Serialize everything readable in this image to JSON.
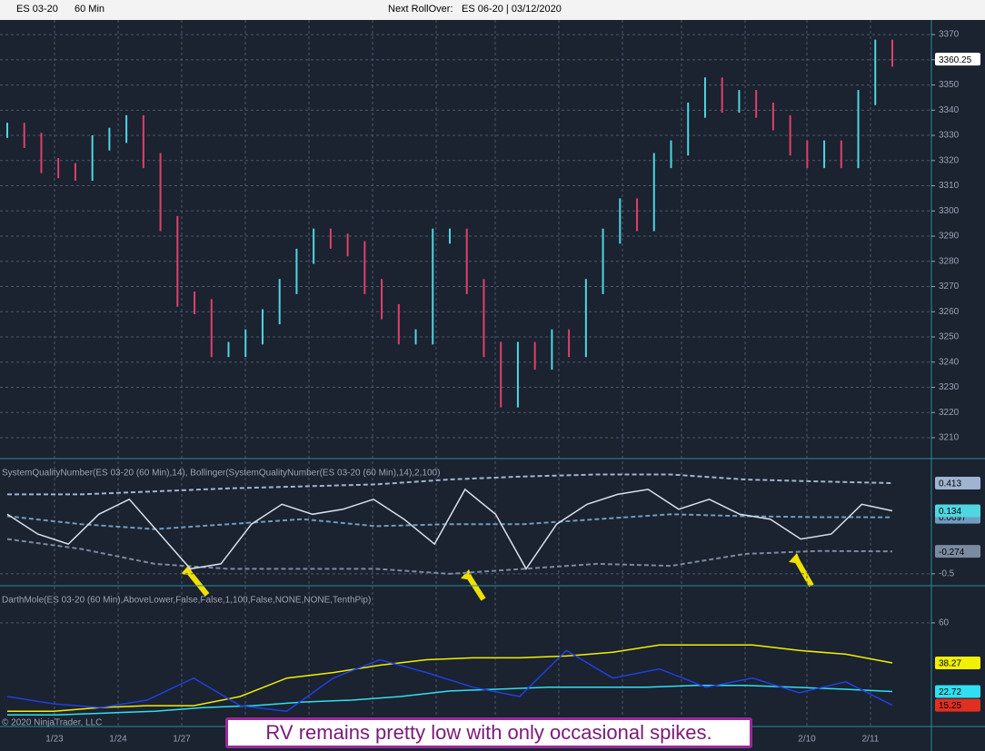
{
  "toolbar": {
    "symbol": "ES 03-20",
    "interval": "60 Min",
    "rollover_label": "Next RollOver:",
    "rollover_value": "ES 06-20 | 03/12/2020"
  },
  "chart_data": [
    {
      "type": "price-bars",
      "series": [
        {
          "name": "ES 03-20",
          "up_color": "#4fd6e0",
          "down_color": "#e0406a",
          "values": [
            3332,
            3328,
            3318,
            3316,
            3315,
            3327,
            3330,
            3335,
            3320,
            3295,
            3265,
            3262,
            3245,
            3245,
            3250,
            3258,
            3270,
            3282,
            3290,
            3288,
            3285,
            3270,
            3260,
            3250,
            3250,
            3290,
            3290,
            3270,
            3245,
            3225,
            3245,
            3240,
            3250,
            3245,
            3270,
            3290,
            3302,
            3295,
            3320,
            3325,
            3340,
            3350,
            3342,
            3345,
            3340,
            3335,
            3325,
            3320,
            3325,
            3320,
            3345,
            3365,
            3360.25
          ]
        }
      ],
      "ylim": [
        3201.7,
        3375.8
      ],
      "yticks": [
        3210,
        3220,
        3230,
        3240,
        3250,
        3260,
        3270,
        3280,
        3290,
        3300,
        3310,
        3320,
        3330,
        3340,
        3350,
        3360,
        3370
      ]
    },
    {
      "type": "line",
      "title": "SystemQualityNumber(ES 03-20 (60 Min),14), Bollinger(SystemQualityNumber(ES 03-20 (60 Min),14),2,100)",
      "series": [
        {
          "name": "Upper",
          "color": "#9fb4d0",
          "dashed": true,
          "values": [
            0.3,
            0.3,
            0.33,
            0.36,
            0.38,
            0.4,
            0.45,
            0.48,
            0.5,
            0.5,
            0.45,
            0.43,
            0.413
          ]
        },
        {
          "name": "Middle",
          "color": "#6f9cc0",
          "dashed": true,
          "values": [
            0.08,
            0.0,
            -0.05,
            0.0,
            0.05,
            -0.02,
            0.0,
            0.0,
            0.05,
            0.1,
            0.08,
            0.07,
            0.0697
          ]
        },
        {
          "name": "Lower",
          "color": "#7a8aa0",
          "dashed": true,
          "values": [
            -0.15,
            -0.25,
            -0.4,
            -0.45,
            -0.45,
            -0.45,
            -0.5,
            -0.45,
            -0.4,
            -0.42,
            -0.3,
            -0.27,
            -0.274
          ]
        },
        {
          "name": "SQN",
          "color": "#4fd6e0",
          "line_color": "#d8e0ec",
          "values": [
            0.1,
            -0.1,
            -0.2,
            0.1,
            0.25,
            -0.1,
            -0.45,
            -0.4,
            0.0,
            0.2,
            0.1,
            0.15,
            0.25,
            0.05,
            -0.2,
            0.35,
            0.1,
            -0.45,
            0.0,
            0.2,
            0.3,
            0.35,
            0.15,
            0.25,
            0.1,
            0.05,
            -0.15,
            -0.1,
            0.2,
            0.134
          ]
        }
      ],
      "ylim": [
        -0.62,
        0.66
      ],
      "yticks": [
        -0.5
      ]
    },
    {
      "type": "line",
      "title": "DarthMole(ES 03-20 (60 Min),AboveLower,False,False,1,100,False,NONE,NONE,TenthPip)",
      "series": [
        {
          "name": "Upper",
          "color": "#f0f000",
          "values": [
            12,
            12,
            14,
            15,
            15,
            20,
            30,
            33,
            37,
            40,
            41,
            41,
            42,
            44,
            48,
            48,
            48,
            45,
            43,
            38.27
          ]
        },
        {
          "name": "Lower",
          "color": "#30e0f0",
          "values": [
            10,
            10,
            11,
            12,
            14,
            15,
            17,
            18,
            20,
            23,
            24,
            25,
            25,
            25,
            26,
            26,
            25,
            24,
            22.72
          ]
        },
        {
          "name": "RV",
          "color": "#e03020",
          "line_color": "#2040e0",
          "values": [
            20,
            16,
            14,
            18,
            30,
            15,
            12,
            30,
            40,
            33,
            25,
            20,
            45,
            30,
            35,
            25,
            30,
            22,
            28,
            15.25
          ]
        }
      ],
      "ylim": [
        3.7,
        80.2
      ],
      "yticks": [
        60
      ]
    }
  ],
  "dates": [
    "1/23",
    "1/24",
    "1/27",
    "2/10",
    "2/11"
  ],
  "copyright": "© 2020 NinjaTrader, LLC",
  "annotation": "RV remains pretty low with only occasional spikes."
}
